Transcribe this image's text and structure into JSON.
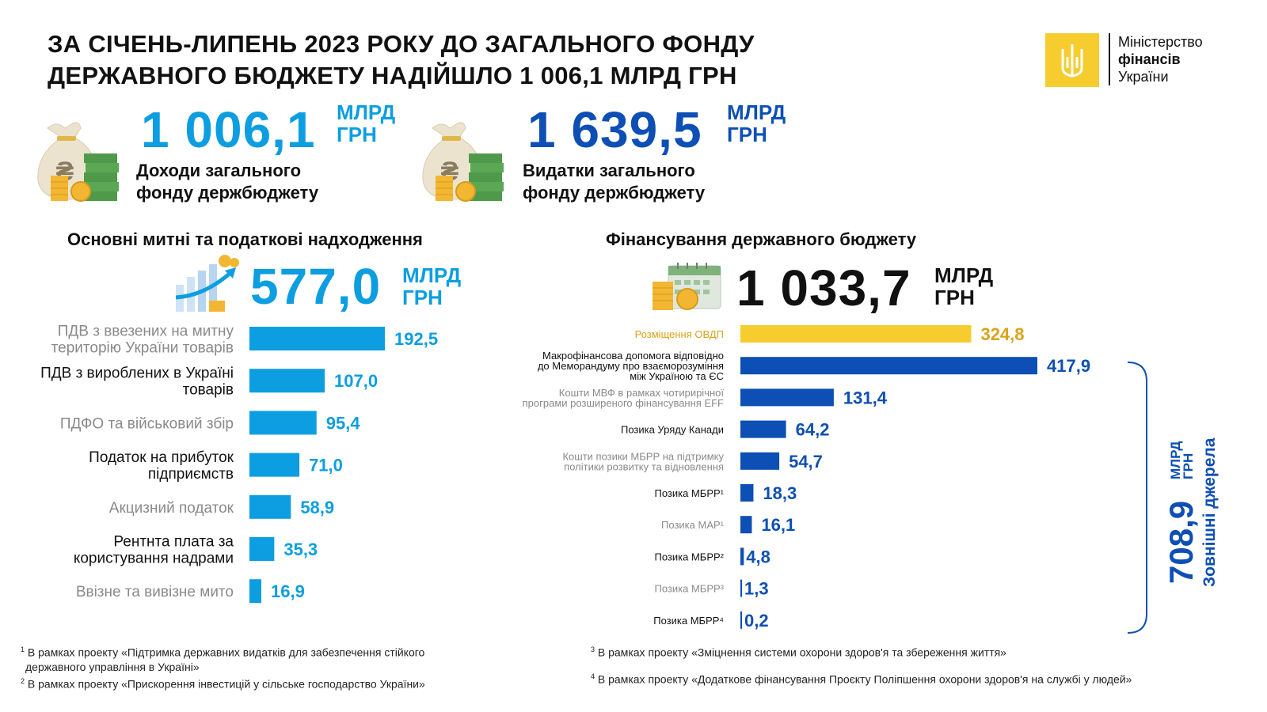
{
  "header": {
    "title_line1": "ЗА СІЧЕНЬ-ЛИПЕНЬ 2023 РОКУ ДО ЗАГАЛЬНОГО ФОНДУ",
    "title_line2": "ДЕРЖАВНОГО БЮДЖЕТУ НАДІЙШЛО 1 006,1 МЛРД ГРН"
  },
  "logo": {
    "line1": "Міністерство",
    "line2": "фінансів",
    "line3": "України"
  },
  "kpi_revenue": {
    "value": "1 006,1",
    "unit1": "МЛРД",
    "unit2": "ГРН",
    "label1": "Доходи загального",
    "label2": "фонду держбюджету",
    "icon": "money-bag-icon"
  },
  "kpi_expense": {
    "value": "1 639,5",
    "unit1": "МЛРД",
    "unit2": "ГРН",
    "label1": "Видатки загального",
    "label2": "фонду держбюджету",
    "icon": "money-bag-icon"
  },
  "left_section": {
    "title": "Основні митні та податкові надходження",
    "total": "577,0",
    "unit1": "МЛРД",
    "unit2": "ГРН",
    "icon": "growth-chart-icon"
  },
  "right_section": {
    "title": "Фінансування державного бюджету",
    "total": "1 033,7",
    "unit1": "МЛРД",
    "unit2": "ГРН",
    "icon": "calendar-coins-icon",
    "bracket_value": "708,9",
    "bracket_unit1": "МЛРД",
    "bracket_unit2": "ГРН",
    "bracket_label": "Зовнішні джерела"
  },
  "colors": {
    "light_blue": "#0c9ee0",
    "dark_blue": "#0d4fb4",
    "yellow": "#f6cc2f",
    "yellow_text": "#d9a31a",
    "gray_text": "#8a8a8a"
  },
  "chart_data": [
    {
      "type": "bar",
      "orientation": "horizontal",
      "title": "Основні митні та податкові надходження",
      "categories": [
        "ПДВ з ввезених на митну територію України товарів",
        "ПДВ з вироблених в Україні товарів",
        "ПДФО та військовий збір",
        "Податок на прибуток підприємств",
        "Акцизний податок",
        "Рентнта плата за користування надрами",
        "Ввізне та вивізне мито"
      ],
      "category_lines": [
        [
          "ПДВ з ввезених на митну",
          "територію України товарів"
        ],
        [
          "ПДВ з вироблених в Україні",
          "товарів"
        ],
        [
          "ПДФО та військовий збір"
        ],
        [
          "Податок на прибуток",
          "підприємств"
        ],
        [
          "Акцизний податок"
        ],
        [
          "Рентнта плата за",
          "користування надрами"
        ],
        [
          "Ввізне та вивізне мито"
        ]
      ],
      "label_style": [
        "gray",
        "dark",
        "gray",
        "dark",
        "gray",
        "dark",
        "gray"
      ],
      "values": [
        192.5,
        107.0,
        95.4,
        71.0,
        58.9,
        35.3,
        16.9
      ],
      "value_labels": [
        "192,5",
        "107,0",
        "95,4",
        "71,0",
        "58,9",
        "35,3",
        "16,9"
      ]
    },
    {
      "type": "bar",
      "orientation": "horizontal",
      "title": "Фінансування державного бюджету",
      "categories": [
        "Розміщення ОВДП",
        "Макрофінансова допомога відповідно до Меморандуму про взаєморозуміння між Україною та ЄС",
        "Кошти МВФ в рамках чотирирічної програми розширеного фінансування EFF",
        "Позика Уряду Канади",
        "Кошти позики МБРР на підтримку політики розвитку та відновлення",
        "Позика МБРР¹",
        "Позика МАР¹",
        "Позика МБРР²",
        "Позика МБРР³",
        "Позика МБРР⁴"
      ],
      "category_lines": [
        [
          "Розміщення ОВДП"
        ],
        [
          "Макрофінансова допомога відповідно",
          "до Меморандуму про взаєморозуміння",
          "між Україною та ЄС"
        ],
        [
          "Кошти МВФ в рамках чотирирічної",
          "програми розширеного фінансування EFF"
        ],
        [
          "Позика Уряду Канади"
        ],
        [
          "Кошти позики МБРР на підтримку",
          "політики розвитку та відновлення"
        ],
        [
          "Позика МБРР¹"
        ],
        [
          "Позика МАР¹"
        ],
        [
          "Позика МБРР²"
        ],
        [
          "Позика МБРР³"
        ],
        [
          "Позика МБРР⁴"
        ]
      ],
      "label_style": [
        "yellow",
        "dark",
        "gray",
        "dark",
        "gray",
        "dark",
        "gray",
        "dark",
        "gray",
        "dark"
      ],
      "values": [
        324.8,
        417.9,
        131.4,
        64.2,
        54.7,
        18.3,
        16.1,
        4.8,
        1.3,
        0.2
      ],
      "value_labels": [
        "324,8",
        "417,9",
        "131,4",
        "64,2",
        "54,7",
        "18,3",
        "16,1",
        "4,8",
        "1,3",
        "0,2"
      ]
    }
  ],
  "footnotes": {
    "f1_mark": "1",
    "f1_line1": "В рамках проекту «Підтримка державних видатків для забезпечення стійкого",
    "f1_line2": "державного управління в Україні»",
    "f2_mark": "2",
    "f2": "В рамках проекту «Прискорення інвестицій у сільське господарство України»",
    "f3_mark": "3",
    "f3": "В рамках проекту «Зміцнення системи охорони здоров'я та збереження життя»",
    "f4_mark": "4",
    "f4": "В рамках проекту «Додаткове фінансування Проєкту Поліпшення охорони здоров'я на службі у людей»"
  }
}
